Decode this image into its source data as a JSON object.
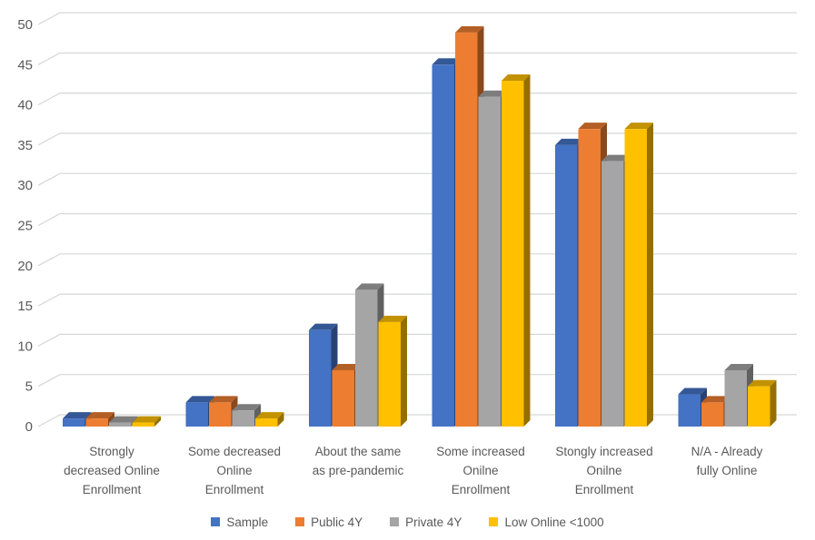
{
  "chart_data": {
    "type": "bar",
    "style": "3d-clustered-column",
    "categories": [
      "Strongly decreased Online Enrollment",
      "Some decreased Online Enrollment",
      "About the same as pre-pandemic",
      "Some increased Onilne Enrollment",
      "Stongly increased Onilne Enrollment",
      "N/A - Already fully Online"
    ],
    "category_lines": [
      [
        "Strongly",
        "decreased Online",
        "Enrollment"
      ],
      [
        "Some decreased",
        "Online",
        "Enrollment"
      ],
      [
        "About the same",
        "as pre-pandemic"
      ],
      [
        "Some increased",
        "Onilne",
        "Enrollment"
      ],
      [
        "Stongly increased",
        "Onilne",
        "Enrollment"
      ],
      [
        "N/A - Already",
        "fully Online"
      ]
    ],
    "series": [
      {
        "name": "Sample",
        "color": "#4472C4",
        "values": [
          1,
          3,
          12,
          45,
          35,
          4
        ]
      },
      {
        "name": "Public 4Y",
        "color": "#ED7D31",
        "values": [
          1,
          3,
          7,
          49,
          37,
          3
        ]
      },
      {
        "name": "Private 4Y",
        "color": "#A5A5A5",
        "values": [
          0.5,
          2,
          17,
          41,
          33,
          7
        ]
      },
      {
        "name": "Low Online <1000",
        "color": "#FFC000",
        "values": [
          0.5,
          1,
          13,
          43,
          37,
          5
        ]
      }
    ],
    "y_axis": {
      "min": 0,
      "max": 50,
      "step": 5,
      "ticks": [
        "0",
        "5",
        "10",
        "15",
        "20",
        "25",
        "30",
        "35",
        "40",
        "45",
        "50"
      ]
    },
    "xlabel": "",
    "ylabel": "",
    "grid": true,
    "legend_position": "bottom",
    "colors": {
      "grid": "#D6D6D6",
      "text": "#595959",
      "background": "#FFFFFF"
    }
  }
}
